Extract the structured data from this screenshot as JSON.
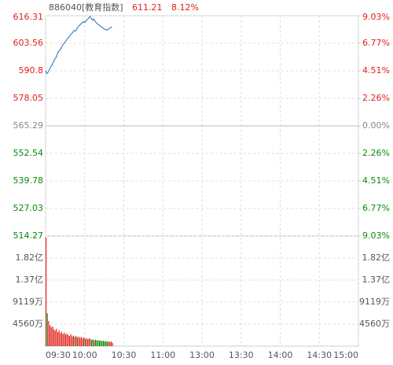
{
  "chart_data": [
    {
      "type": "line",
      "title": "886040[教育指数]",
      "last_price": 611.21,
      "last_change": "8.12%",
      "x": [
        0,
        1,
        2,
        3,
        4,
        5,
        6,
        7,
        8,
        9,
        10,
        11,
        12,
        13,
        14,
        15,
        16,
        17,
        18,
        19,
        20,
        21,
        22,
        23,
        24,
        25,
        26,
        27,
        28,
        29,
        30,
        31,
        32,
        33,
        34,
        35,
        36,
        37,
        38,
        39,
        40,
        41,
        42,
        43,
        44,
        45,
        46,
        47,
        48,
        49,
        50,
        51
      ],
      "values": [
        590.8,
        589.5,
        590.2,
        591.5,
        592.8,
        593.5,
        594.9,
        596.2,
        597.0,
        598.5,
        599.8,
        600.5,
        601.3,
        602.6,
        603.4,
        604.1,
        605.0,
        605.8,
        606.5,
        607.3,
        608.0,
        608.8,
        609.5,
        609.2,
        610.4,
        611.2,
        611.8,
        612.5,
        613.0,
        613.6,
        613.1,
        614.0,
        614.6,
        615.2,
        615.9,
        615.1,
        614.3,
        614.8,
        613.7,
        613.0,
        612.4,
        612.0,
        611.6,
        611.0,
        610.7,
        610.2,
        609.9,
        609.6,
        610.1,
        610.5,
        610.9,
        611.21
      ],
      "color": "#1f6fb4",
      "up_color": "#e0201c",
      "down_color": "#0a8a0a",
      "flat_color": "#888888",
      "xlim": [
        0,
        240
      ],
      "ylim": [
        514.27,
        616.31
      ],
      "yticks": [
        616.31,
        603.56,
        590.8,
        578.05,
        565.29,
        552.54,
        539.78,
        527.03,
        514.27
      ],
      "y2lim": [
        -9.03,
        9.03
      ],
      "y2ticks": [
        {
          "value": 9.03,
          "label": "9.03%"
        },
        {
          "value": 6.77,
          "label": "6.77%"
        },
        {
          "value": 4.51,
          "label": "4.51%"
        },
        {
          "value": 2.26,
          "label": "2.26%"
        },
        {
          "value": 0,
          "label": "0.00%"
        },
        {
          "value": -2.26,
          "label": "2.26%"
        },
        {
          "value": -4.51,
          "label": "4.51%"
        },
        {
          "value": -6.77,
          "label": "6.77%"
        },
        {
          "value": -9.03,
          "label": "9.03%"
        }
      ],
      "grid": true
    },
    {
      "type": "bar",
      "values": [
        22500,
        6800,
        5200,
        4300,
        3900,
        4100,
        3500,
        3200,
        3600,
        2900,
        3300,
        2700,
        3000,
        2500,
        2800,
        2400,
        2600,
        2300,
        2100,
        2500,
        2000,
        2200,
        1900,
        2100,
        1800,
        2000,
        1700,
        1900,
        1600,
        1800,
        1500,
        1700,
        1400,
        1600,
        1500,
        1300,
        1400,
        1200,
        1350,
        1150,
        1250,
        1100,
        1200,
        1000,
        1150,
        950,
        1050,
        900,
        1000,
        850,
        950,
        700
      ],
      "ylim": [
        0,
        22798
      ],
      "yticks": [
        {
          "value": 18238,
          "label": "1.82亿"
        },
        {
          "value": 13679,
          "label": "1.37亿"
        },
        {
          "value": 9119,
          "label": "9119万"
        },
        {
          "value": 4560,
          "label": "4560万"
        }
      ],
      "xlim": [
        0,
        240
      ],
      "xticks": [
        {
          "value": 0,
          "label": "09:30"
        },
        {
          "value": 30,
          "label": "10:00"
        },
        {
          "value": 60,
          "label": "10:30"
        },
        {
          "value": 90,
          "label": "11:00"
        },
        {
          "value": 120,
          "label": "13:00"
        },
        {
          "value": 150,
          "label": "13:30"
        },
        {
          "value": 180,
          "label": "14:00"
        },
        {
          "value": 210,
          "label": "14:30"
        },
        {
          "value": 240,
          "label": "15:00"
        }
      ],
      "grid": true
    }
  ]
}
